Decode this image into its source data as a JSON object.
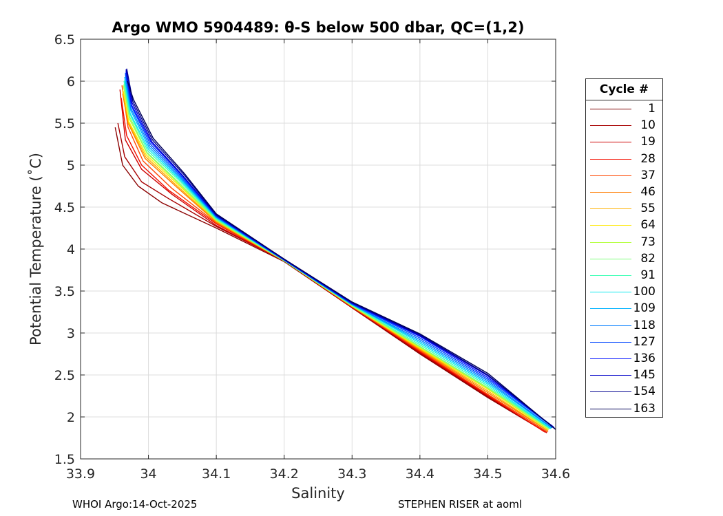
{
  "chart_data": {
    "type": "line",
    "title": "Argo WMO 5904489: θ-S below 500 dbar,  QC=(1,2)",
    "xlabel": "Salinity",
    "ylabel": "Potential Temperature (˚C)",
    "xlim": [
      33.9,
      34.6
    ],
    "ylim": [
      1.5,
      6.5
    ],
    "xticks": [
      "33.9",
      "34",
      "34.1",
      "34.2",
      "34.3",
      "34.4",
      "34.5",
      "34.6"
    ],
    "yticks": [
      "1.5",
      "2",
      "2.5",
      "3",
      "3.5",
      "4",
      "4.5",
      "5",
      "5.5",
      "6",
      "6.5"
    ],
    "grid": true,
    "legend": {
      "title": "Cycle #",
      "placement": "right",
      "entries": [
        {
          "label": "1",
          "color": "#800000"
        },
        {
          "label": "10",
          "color": "#a70000"
        },
        {
          "label": "19",
          "color": "#ce0000"
        },
        {
          "label": "28",
          "color": "#f41000"
        },
        {
          "label": "37",
          "color": "#ff4600"
        },
        {
          "label": "46",
          "color": "#ff7c00"
        },
        {
          "label": "55",
          "color": "#ffb200"
        },
        {
          "label": "64",
          "color": "#ffe800"
        },
        {
          "label": "73",
          "color": "#b6ff41"
        },
        {
          "label": "82",
          "color": "#7dff7a"
        },
        {
          "label": "91",
          "color": "#41ffb6"
        },
        {
          "label": "100",
          "color": "#08e9ef"
        },
        {
          "label": "109",
          "color": "#00b2ff"
        },
        {
          "label": "118",
          "color": "#007cff"
        },
        {
          "label": "127",
          "color": "#0046ff"
        },
        {
          "label": "136",
          "color": "#0010ff"
        },
        {
          "label": "145",
          "color": "#0000c8"
        },
        {
          "label": "154",
          "color": "#00008f"
        },
        {
          "label": "163",
          "color": "#000058"
        }
      ]
    },
    "series": [
      {
        "name": "1",
        "color": "#8b0000",
        "x": [
          33.951,
          33.962,
          33.985,
          34.02,
          34.1,
          34.2,
          34.3,
          34.4,
          34.5,
          34.585
        ],
        "y": [
          5.45,
          5.0,
          4.75,
          4.55,
          4.25,
          3.85,
          3.3,
          2.75,
          2.23,
          1.82
        ]
      },
      {
        "name": "10",
        "color": "#a70000",
        "x": [
          33.955,
          33.965,
          33.99,
          34.03,
          34.1,
          34.2,
          34.3,
          34.4,
          34.5,
          34.583
        ],
        "y": [
          5.5,
          5.1,
          4.8,
          4.6,
          4.27,
          3.86,
          3.3,
          2.76,
          2.24,
          1.83
        ]
      },
      {
        "name": "19",
        "color": "#ce0000",
        "x": [
          33.958,
          33.966,
          33.99,
          34.035,
          34.1,
          34.2,
          34.3,
          34.4,
          34.5,
          34.587
        ],
        "y": [
          5.9,
          5.3,
          4.95,
          4.65,
          4.28,
          3.86,
          3.31,
          2.77,
          2.25,
          1.81
        ]
      },
      {
        "name": "28",
        "color": "#f41000",
        "x": [
          33.96,
          33.968,
          33.99,
          34.03,
          34.1,
          34.2,
          34.3,
          34.4,
          34.5,
          34.584
        ],
        "y": [
          5.8,
          5.35,
          5.0,
          4.7,
          4.3,
          3.86,
          3.31,
          2.78,
          2.26,
          1.82
        ]
      },
      {
        "name": "37",
        "color": "#ff4600",
        "x": [
          33.961,
          33.97,
          33.992,
          34.035,
          34.1,
          34.2,
          34.3,
          34.4,
          34.5,
          34.588
        ],
        "y": [
          5.95,
          5.45,
          5.05,
          4.72,
          4.31,
          3.86,
          3.31,
          2.79,
          2.27,
          1.82
        ]
      },
      {
        "name": "46",
        "color": "#ff7c00",
        "x": [
          33.962,
          33.97,
          33.995,
          34.04,
          34.1,
          34.2,
          34.3,
          34.4,
          34.5,
          34.589
        ],
        "y": [
          5.85,
          5.5,
          5.08,
          4.75,
          4.32,
          3.86,
          3.32,
          2.8,
          2.29,
          1.83
        ]
      },
      {
        "name": "55",
        "color": "#ffb200",
        "x": [
          33.962,
          33.971,
          33.996,
          34.04,
          34.1,
          34.2,
          34.3,
          34.4,
          34.5,
          34.588
        ],
        "y": [
          5.9,
          5.5,
          5.1,
          4.77,
          4.33,
          3.86,
          3.32,
          2.81,
          2.31,
          1.84
        ]
      },
      {
        "name": "64",
        "color": "#ffe800",
        "x": [
          33.963,
          33.971,
          33.997,
          34.042,
          34.1,
          34.2,
          34.3,
          34.4,
          34.5,
          34.589
        ],
        "y": [
          5.88,
          5.52,
          5.12,
          4.78,
          4.34,
          3.86,
          3.32,
          2.82,
          2.33,
          1.85
        ]
      },
      {
        "name": "73",
        "color": "#b6ff41",
        "x": [
          33.963,
          33.972,
          33.998,
          34.043,
          34.1,
          34.2,
          34.3,
          34.4,
          34.5,
          34.59
        ],
        "y": [
          5.95,
          5.55,
          5.14,
          4.79,
          4.34,
          3.86,
          3.32,
          2.83,
          2.34,
          1.85
        ]
      },
      {
        "name": "82",
        "color": "#7dff7a",
        "x": [
          33.964,
          33.972,
          33.998,
          34.044,
          34.1,
          34.2,
          34.3,
          34.4,
          34.5,
          34.591
        ],
        "y": [
          5.97,
          5.58,
          5.15,
          4.8,
          4.35,
          3.86,
          3.33,
          2.84,
          2.35,
          1.86
        ]
      },
      {
        "name": "91",
        "color": "#41ffb6",
        "x": [
          33.964,
          33.973,
          33.999,
          34.045,
          34.1,
          34.2,
          34.3,
          34.4,
          34.5,
          34.592
        ],
        "y": [
          6.0,
          5.6,
          5.17,
          4.82,
          4.36,
          3.87,
          3.33,
          2.86,
          2.37,
          1.86
        ]
      },
      {
        "name": "100",
        "color": "#08e9ef",
        "x": [
          33.965,
          33.973,
          34.0,
          34.046,
          34.1,
          34.2,
          34.3,
          34.4,
          34.5,
          34.593
        ],
        "y": [
          6.02,
          5.62,
          5.19,
          4.83,
          4.37,
          3.87,
          3.34,
          2.88,
          2.39,
          1.86
        ]
      },
      {
        "name": "109",
        "color": "#00b2ff",
        "x": [
          33.965,
          33.974,
          34.001,
          34.047,
          34.1,
          34.2,
          34.3,
          34.4,
          34.5,
          34.594
        ],
        "y": [
          6.05,
          5.65,
          5.21,
          4.84,
          4.38,
          3.87,
          3.34,
          2.9,
          2.41,
          1.87
        ]
      },
      {
        "name": "118",
        "color": "#007cff",
        "x": [
          33.966,
          33.974,
          34.002,
          34.048,
          34.1,
          34.2,
          34.3,
          34.4,
          34.5,
          34.595
        ],
        "y": [
          6.08,
          5.68,
          5.23,
          4.85,
          4.38,
          3.87,
          3.34,
          2.92,
          2.43,
          1.87
        ]
      },
      {
        "name": "127",
        "color": "#0046ff",
        "x": [
          33.966,
          33.975,
          34.003,
          34.049,
          34.1,
          34.2,
          34.3,
          34.4,
          34.5,
          34.596
        ],
        "y": [
          6.1,
          5.7,
          5.25,
          4.86,
          4.39,
          3.87,
          3.35,
          2.94,
          2.45,
          1.88
        ]
      },
      {
        "name": "136",
        "color": "#0010ff",
        "x": [
          33.967,
          33.975,
          34.004,
          34.05,
          34.1,
          34.2,
          34.3,
          34.4,
          34.5,
          34.597
        ],
        "y": [
          6.12,
          5.72,
          5.27,
          4.87,
          4.4,
          3.87,
          3.35,
          2.96,
          2.47,
          1.88
        ]
      },
      {
        "name": "145",
        "color": "#0000c8",
        "x": [
          33.967,
          33.976,
          34.005,
          34.05,
          34.1,
          34.2,
          34.3,
          34.4,
          34.5,
          34.598
        ],
        "y": [
          6.14,
          5.74,
          5.28,
          4.88,
          4.4,
          3.88,
          3.36,
          2.97,
          2.49,
          1.87
        ]
      },
      {
        "name": "154",
        "color": "#00008f",
        "x": [
          33.968,
          33.977,
          34.006,
          34.052,
          34.1,
          34.2,
          34.3,
          34.4,
          34.5,
          34.599
        ],
        "y": [
          6.15,
          5.76,
          5.3,
          4.89,
          4.41,
          3.88,
          3.36,
          2.98,
          2.5,
          1.86
        ]
      },
      {
        "name": "163",
        "color": "#000058",
        "x": [
          33.969,
          33.978,
          34.007,
          34.053,
          34.1,
          34.2,
          34.3,
          34.4,
          34.5,
          34.6
        ],
        "y": [
          6.0,
          5.78,
          5.32,
          4.9,
          4.42,
          3.88,
          3.37,
          2.99,
          2.52,
          1.85
        ]
      }
    ]
  },
  "footer": {
    "left": "WHOI Argo:14-Oct-2025",
    "right": "STEPHEN RISER at aoml"
  }
}
